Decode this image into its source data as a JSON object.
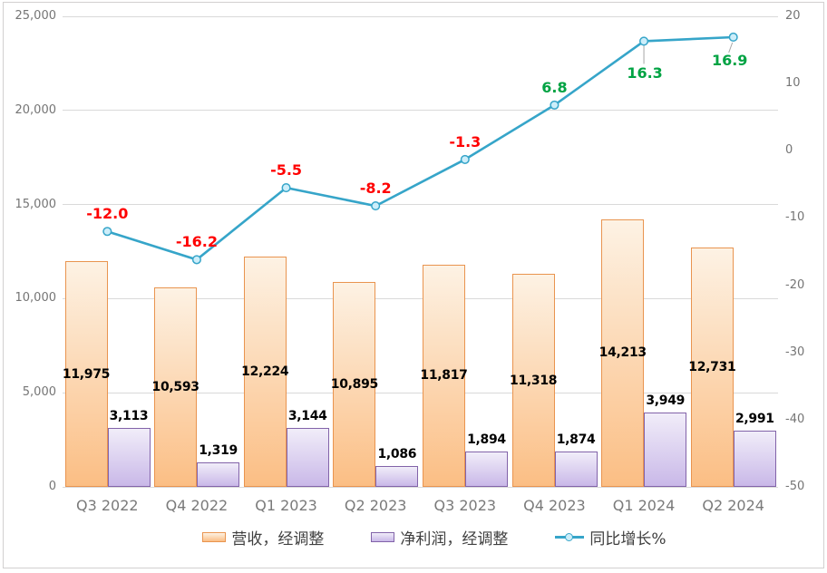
{
  "chart_data": {
    "type": "bar",
    "subtype": "combo-bar-line",
    "title": "",
    "categories": [
      "Q3 2022",
      "Q4 2022",
      "Q1 2023",
      "Q2 2023",
      "Q3 2023",
      "Q4 2023",
      "Q1 2024",
      "Q2 2024"
    ],
    "series": [
      {
        "name": "营收，经调整",
        "type": "bar",
        "axis": "left",
        "values": [
          11975,
          10593,
          12224,
          10895,
          11817,
          11318,
          14213,
          12731
        ],
        "labels": [
          "11,975",
          "10,593",
          "12,224",
          "10,895",
          "11,817",
          "11,318",
          "14,213",
          "12,731"
        ]
      },
      {
        "name": "净利润，经调整",
        "type": "bar",
        "axis": "left",
        "values": [
          3113,
          1319,
          3144,
          1086,
          1894,
          1874,
          3949,
          2991
        ],
        "labels": [
          "3,113",
          "1,319",
          "3,144",
          "1,086",
          "1,894",
          "1,874",
          "3,949",
          "2,991"
        ]
      },
      {
        "name": "同比增长%",
        "type": "line",
        "axis": "right",
        "values": [
          -12.0,
          -16.2,
          -5.5,
          -8.2,
          -1.3,
          6.8,
          16.3,
          16.9
        ],
        "labels": [
          "-12.0",
          "-16.2",
          "-5.5",
          "-8.2",
          "-1.3",
          "6.8",
          "16.3",
          "16.9"
        ]
      }
    ],
    "left_axis": {
      "min": 0,
      "max": 25000,
      "tick_labels": [
        "25,000",
        "20,000",
        "15,000",
        "10,000",
        "5,000",
        "0"
      ]
    },
    "right_axis": {
      "min": -50,
      "max": 20,
      "tick_labels": [
        "20",
        "10",
        "0",
        "-10",
        "-20",
        "-30",
        "-40",
        "-50"
      ]
    },
    "grid": "horizontal-on",
    "legend_position": "bottom",
    "colors": {
      "revenue_fill_top": "#FDF2E4",
      "revenue_fill_bottom": "#FBBE84",
      "revenue_border": "#E9944F",
      "netprofit_fill_top": "#F1EDF9",
      "netprofit_fill_bottom": "#C9B8E8",
      "netprofit_border": "#8263A9",
      "line": "#36A5C9",
      "marker_fill": "#CDEEFA",
      "negative_label": "#FF0000",
      "positive_label": "#00A343",
      "gridline": "#D9D9D9",
      "axis_text": "#757575",
      "category_text": "#7A7A7A",
      "bar_label_text": "#000000",
      "leader_line": "#A6A6A6",
      "chart_border": "#D2D0D0"
    }
  }
}
